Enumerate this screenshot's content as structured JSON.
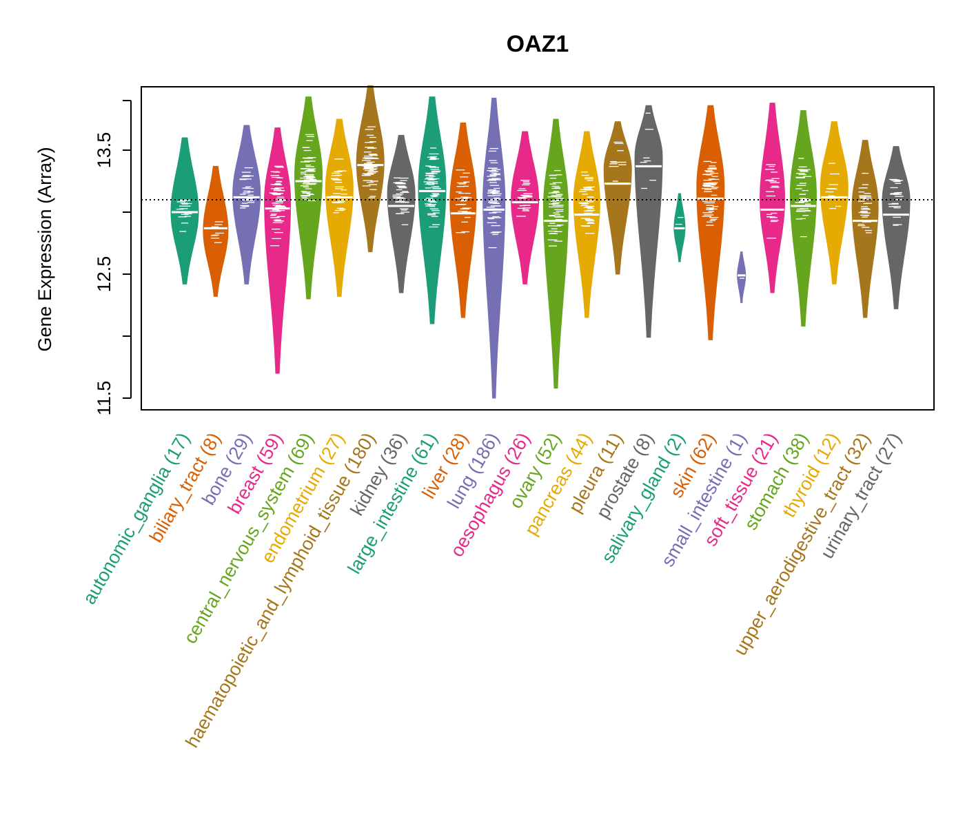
{
  "colors": {
    "palette": [
      "#1B9E77",
      "#D95F02",
      "#7570B3",
      "#E7298A",
      "#66A61E",
      "#E6AB02",
      "#A6761D",
      "#666666"
    ],
    "marker": "#ffffff",
    "reference_line": "#000000"
  },
  "chart_data": {
    "type": "beeswarm-violin",
    "title": "OAZ1",
    "xlabel": "",
    "ylabel": "Gene Expression (Array)",
    "ylim": [
      11.4,
      14.0
    ],
    "yticks": [
      11.5,
      12.0,
      12.5,
      13.0,
      13.5,
      13.9
    ],
    "ytick_labels": [
      "11.5",
      "",
      "12.5",
      "",
      "13.5",
      ""
    ],
    "reference_line": 13.1,
    "grid": false,
    "legend": "none",
    "categories": [
      {
        "name": "autonomic_ganglia",
        "count": 17,
        "label": "autonomic_ganglia (17)",
        "color": "#1B9E77",
        "min": 12.42,
        "max": 13.6,
        "median": 13.0,
        "mode": 13.0,
        "width": 1.0
      },
      {
        "name": "biliary_tract",
        "count": 8,
        "label": "biliary_tract (8)",
        "color": "#D95F02",
        "min": 12.32,
        "max": 13.37,
        "median": 12.87,
        "mode": 12.85,
        "width": 0.9
      },
      {
        "name": "bone",
        "count": 29,
        "label": "bone (29)",
        "color": "#7570B3",
        "min": 12.42,
        "max": 13.7,
        "median": 13.12,
        "mode": 13.15,
        "width": 1.0
      },
      {
        "name": "breast",
        "count": 59,
        "label": "breast (59)",
        "color": "#E7298A",
        "min": 11.7,
        "max": 13.68,
        "median": 13.03,
        "mode": 13.1,
        "width": 0.95
      },
      {
        "name": "central_nervous_system",
        "count": 69,
        "label": "central_nervous_system (69)",
        "color": "#66A61E",
        "min": 12.3,
        "max": 13.93,
        "median": 13.25,
        "mode": 13.3,
        "width": 1.0
      },
      {
        "name": "endometrium",
        "count": 27,
        "label": "endometrium (27)",
        "color": "#E6AB02",
        "min": 12.32,
        "max": 13.75,
        "median": 13.12,
        "mode": 13.2,
        "width": 1.0
      },
      {
        "name": "haematopoietic_and_lymphoid_tissue",
        "count": 180,
        "label": "haematopoietic_and_lymphoid_tissue (180)",
        "color": "#A6761D",
        "min": 12.68,
        "max": 14.02,
        "median": 13.38,
        "mode": 13.4,
        "width": 1.0
      },
      {
        "name": "kidney",
        "count": 36,
        "label": "kidney (36)",
        "color": "#666666",
        "min": 12.35,
        "max": 13.62,
        "median": 13.05,
        "mode": 13.15,
        "width": 1.0
      },
      {
        "name": "large_intestine",
        "count": 61,
        "label": "large_intestine (61)",
        "color": "#1B9E77",
        "min": 12.1,
        "max": 13.93,
        "median": 13.17,
        "mode": 13.2,
        "width": 1.0
      },
      {
        "name": "liver",
        "count": 28,
        "label": "liver (28)",
        "color": "#D95F02",
        "min": 12.15,
        "max": 13.72,
        "median": 12.99,
        "mode": 13.1,
        "width": 0.95
      },
      {
        "name": "lung",
        "count": 186,
        "label": "lung (186)",
        "color": "#7570B3",
        "min": 11.5,
        "max": 13.92,
        "median": 13.02,
        "mode": 13.1,
        "width": 0.8
      },
      {
        "name": "oesophagus",
        "count": 26,
        "label": "oesophagus (26)",
        "color": "#E7298A",
        "min": 12.42,
        "max": 13.65,
        "median": 13.08,
        "mode": 13.1,
        "width": 1.0
      },
      {
        "name": "ovary",
        "count": 52,
        "label": "ovary (52)",
        "color": "#66A61E",
        "min": 11.58,
        "max": 13.75,
        "median": 12.93,
        "mode": 13.05,
        "width": 0.9
      },
      {
        "name": "pancreas",
        "count": 44,
        "label": "pancreas (44)",
        "color": "#E6AB02",
        "min": 12.15,
        "max": 13.65,
        "median": 12.98,
        "mode": 13.1,
        "width": 0.95
      },
      {
        "name": "pleura",
        "count": 11,
        "label": "pleura (11)",
        "color": "#A6761D",
        "min": 12.5,
        "max": 13.73,
        "median": 13.23,
        "mode": 13.35,
        "width": 1.0
      },
      {
        "name": "prostate",
        "count": 8,
        "label": "prostate (8)",
        "color": "#666666",
        "min": 11.99,
        "max": 13.86,
        "median": 13.37,
        "mode": 13.45,
        "width": 1.0
      },
      {
        "name": "salivary_gland",
        "count": 2,
        "label": "salivary_gland (2)",
        "color": "#1B9E77",
        "min": 12.6,
        "max": 13.15,
        "median": 12.87,
        "mode": 12.87,
        "width": 0.4
      },
      {
        "name": "skin",
        "count": 62,
        "label": "skin (62)",
        "color": "#D95F02",
        "min": 11.97,
        "max": 13.86,
        "median": 13.11,
        "mode": 13.2,
        "width": 1.0
      },
      {
        "name": "small_intestine",
        "count": 1,
        "label": "small_intestine (1)",
        "color": "#7570B3",
        "min": 12.27,
        "max": 12.68,
        "median": 12.49,
        "mode": 12.49,
        "width": 0.3
      },
      {
        "name": "soft_tissue",
        "count": 21,
        "label": "soft_tissue (21)",
        "color": "#E7298A",
        "min": 12.35,
        "max": 13.88,
        "median": 13.02,
        "mode": 13.1,
        "width": 0.9
      },
      {
        "name": "stomach",
        "count": 38,
        "label": "stomach (38)",
        "color": "#66A61E",
        "min": 12.08,
        "max": 13.82,
        "median": 13.05,
        "mode": 13.15,
        "width": 0.95
      },
      {
        "name": "thyroid",
        "count": 12,
        "label": "thyroid (12)",
        "color": "#E6AB02",
        "min": 12.42,
        "max": 13.73,
        "median": 13.12,
        "mode": 13.2,
        "width": 1.0
      },
      {
        "name": "upper_aerodigestive_tract",
        "count": 32,
        "label": "upper_aerodigestive_tract (32)",
        "color": "#A6761D",
        "min": 12.15,
        "max": 13.58,
        "median": 12.93,
        "mode": 13.05,
        "width": 0.95
      },
      {
        "name": "urinary_tract",
        "count": 27,
        "label": "urinary_tract (27)",
        "color": "#666666",
        "min": 12.22,
        "max": 13.53,
        "median": 12.98,
        "mode": 13.1,
        "width": 1.0
      }
    ]
  }
}
